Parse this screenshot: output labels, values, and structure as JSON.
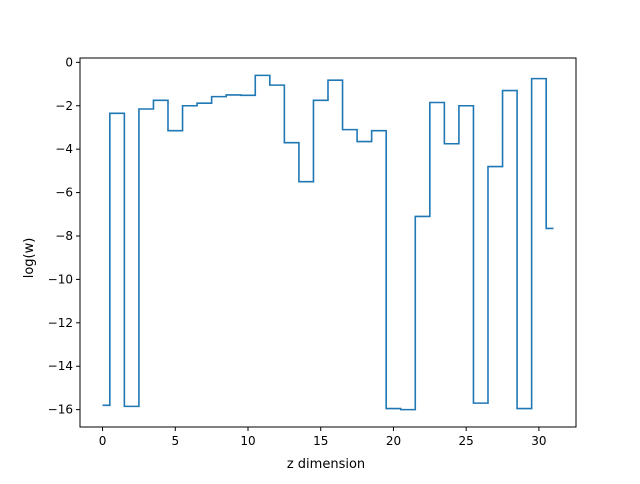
{
  "chart_data": {
    "type": "line",
    "drawstyle": "steps-mid",
    "title": "",
    "xlabel": "z dimension",
    "ylabel": "log(w)",
    "xlim": [
      -1.55,
      32.55
    ],
    "ylim": [
      -16.8,
      0.2
    ],
    "xticks": [
      0,
      5,
      10,
      15,
      20,
      25,
      30
    ],
    "yticks": [
      0,
      -2,
      -4,
      -6,
      -8,
      -10,
      -12,
      -14,
      -16
    ],
    "grid": false,
    "legend": "none",
    "series": [
      {
        "color": "#1f77b4",
        "x": [
          0,
          1,
          2,
          3,
          4,
          5,
          6,
          7,
          8,
          9,
          10,
          11,
          12,
          13,
          14,
          15,
          16,
          17,
          18,
          19,
          20,
          21,
          22,
          23,
          24,
          25,
          26,
          27,
          28,
          29,
          30,
          31
        ],
        "y": [
          -15.8,
          -2.35,
          -15.85,
          -2.15,
          -1.75,
          -3.15,
          -2.0,
          -1.88,
          -1.58,
          -1.5,
          -1.52,
          -0.6,
          -1.05,
          -3.7,
          -5.5,
          -1.75,
          -0.82,
          -3.1,
          -3.65,
          -3.15,
          -15.95,
          -16.0,
          -7.1,
          -1.85,
          -3.75,
          -2.0,
          -15.7,
          -4.8,
          -1.3,
          -15.95,
          -0.75,
          -7.65
        ]
      }
    ]
  }
}
